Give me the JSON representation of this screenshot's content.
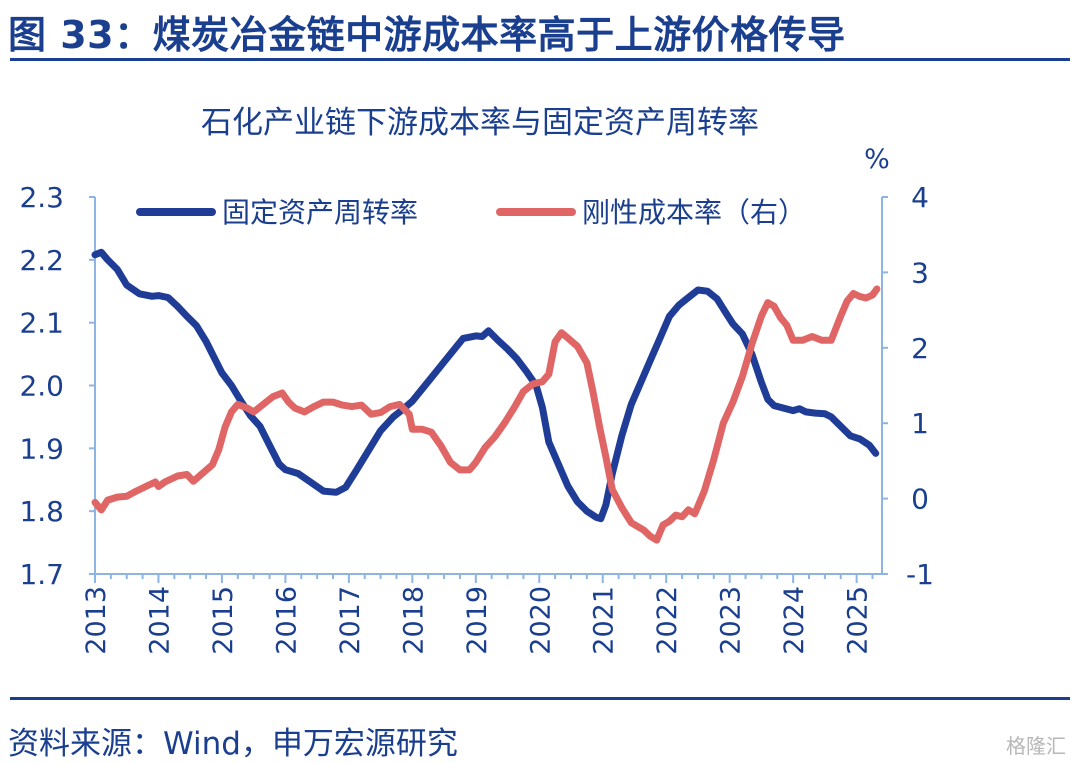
{
  "header": {
    "figure_title": "图 33：煤炭冶金链中游成本率高于上游价格传导"
  },
  "footer": {
    "source": "资料来源：Wind，申万宏源研究",
    "watermark": "格隆汇"
  },
  "colors": {
    "brand": "#1b3f8f",
    "series_left": "#1f3d96",
    "series_right": "#e06666",
    "axis": "#8eb4e3",
    "tick_text": "#1b3f8f"
  },
  "chart_data": {
    "type": "line",
    "title": "石化产业链下游成本率与固定资产周转率",
    "right_unit": "%",
    "legend_placement": "top",
    "grid": false,
    "x_range": [
      2013,
      2025.4
    ],
    "x_ticks": [
      "2013",
      "2014",
      "2015",
      "2016",
      "2017",
      "2018",
      "2019",
      "2020",
      "2021",
      "2022",
      "2023",
      "2024",
      "2025"
    ],
    "y_left": {
      "range": [
        1.7,
        2.3
      ],
      "ticks": [
        "1.7",
        "1.8",
        "1.9",
        "2.0",
        "2.1",
        "2.2",
        "2.3"
      ]
    },
    "y_right": {
      "range": [
        -1,
        4
      ],
      "ticks": [
        "-1",
        "0",
        "1",
        "2",
        "3",
        "4"
      ]
    },
    "series": [
      {
        "name": "固定资产周转率",
        "axis": "left",
        "points": [
          [
            2013.0,
            2.208
          ],
          [
            2013.1,
            2.212
          ],
          [
            2013.2,
            2.2
          ],
          [
            2013.35,
            2.185
          ],
          [
            2013.5,
            2.16
          ],
          [
            2013.7,
            2.146
          ],
          [
            2013.9,
            2.142
          ],
          [
            2014.0,
            2.143
          ],
          [
            2014.15,
            2.14
          ],
          [
            2014.3,
            2.126
          ],
          [
            2014.45,
            2.11
          ],
          [
            2014.6,
            2.095
          ],
          [
            2014.75,
            2.07
          ],
          [
            2014.9,
            2.04
          ],
          [
            2015.0,
            2.02
          ],
          [
            2015.15,
            2.0
          ],
          [
            2015.3,
            1.975
          ],
          [
            2015.45,
            1.952
          ],
          [
            2015.6,
            1.935
          ],
          [
            2015.75,
            1.905
          ],
          [
            2015.9,
            1.875
          ],
          [
            2016.0,
            1.866
          ],
          [
            2016.2,
            1.86
          ],
          [
            2016.4,
            1.846
          ],
          [
            2016.6,
            1.832
          ],
          [
            2016.8,
            1.83
          ],
          [
            2016.95,
            1.838
          ],
          [
            2017.1,
            1.862
          ],
          [
            2017.3,
            1.895
          ],
          [
            2017.5,
            1.928
          ],
          [
            2017.7,
            1.95
          ],
          [
            2017.85,
            1.962
          ],
          [
            2018.0,
            1.975
          ],
          [
            2018.2,
            2.0
          ],
          [
            2018.4,
            2.025
          ],
          [
            2018.6,
            2.05
          ],
          [
            2018.8,
            2.075
          ],
          [
            2019.0,
            2.079
          ],
          [
            2019.1,
            2.078
          ],
          [
            2019.2,
            2.087
          ],
          [
            2019.35,
            2.072
          ],
          [
            2019.5,
            2.058
          ],
          [
            2019.65,
            2.042
          ],
          [
            2019.8,
            2.022
          ],
          [
            2019.95,
            2.0
          ],
          [
            2020.05,
            1.965
          ],
          [
            2020.15,
            1.91
          ],
          [
            2020.3,
            1.875
          ],
          [
            2020.45,
            1.84
          ],
          [
            2020.6,
            1.815
          ],
          [
            2020.75,
            1.8
          ],
          [
            2020.9,
            1.79
          ],
          [
            2020.97,
            1.788
          ],
          [
            2021.05,
            1.81
          ],
          [
            2021.15,
            1.86
          ],
          [
            2021.3,
            1.92
          ],
          [
            2021.45,
            1.97
          ],
          [
            2021.6,
            2.005
          ],
          [
            2021.75,
            2.04
          ],
          [
            2021.9,
            2.075
          ],
          [
            2022.05,
            2.11
          ],
          [
            2022.2,
            2.128
          ],
          [
            2022.35,
            2.14
          ],
          [
            2022.5,
            2.152
          ],
          [
            2022.65,
            2.15
          ],
          [
            2022.8,
            2.138
          ],
          [
            2022.95,
            2.114
          ],
          [
            2023.05,
            2.098
          ],
          [
            2023.2,
            2.082
          ],
          [
            2023.35,
            2.05
          ],
          [
            2023.5,
            2.005
          ],
          [
            2023.6,
            1.978
          ],
          [
            2023.7,
            1.968
          ],
          [
            2023.85,
            1.964
          ],
          [
            2024.0,
            1.96
          ],
          [
            2024.1,
            1.963
          ],
          [
            2024.2,
            1.958
          ],
          [
            2024.35,
            1.956
          ],
          [
            2024.5,
            1.955
          ],
          [
            2024.6,
            1.95
          ],
          [
            2024.75,
            1.935
          ],
          [
            2024.9,
            1.92
          ],
          [
            2025.05,
            1.915
          ],
          [
            2025.2,
            1.905
          ],
          [
            2025.3,
            1.892
          ]
        ]
      },
      {
        "name": "刚性成本率（右）",
        "axis": "right",
        "points": [
          [
            2013.0,
            -0.05
          ],
          [
            2013.1,
            -0.15
          ],
          [
            2013.2,
            -0.02
          ],
          [
            2013.35,
            0.02
          ],
          [
            2013.5,
            0.03
          ],
          [
            2013.65,
            0.1
          ],
          [
            2013.8,
            0.16
          ],
          [
            2013.95,
            0.22
          ],
          [
            2014.0,
            0.16
          ],
          [
            2014.1,
            0.22
          ],
          [
            2014.3,
            0.3
          ],
          [
            2014.45,
            0.32
          ],
          [
            2014.55,
            0.23
          ],
          [
            2014.7,
            0.34
          ],
          [
            2014.85,
            0.45
          ],
          [
            2014.95,
            0.65
          ],
          [
            2015.05,
            0.95
          ],
          [
            2015.15,
            1.15
          ],
          [
            2015.25,
            1.25
          ],
          [
            2015.4,
            1.2
          ],
          [
            2015.5,
            1.15
          ],
          [
            2015.65,
            1.25
          ],
          [
            2015.8,
            1.35
          ],
          [
            2015.95,
            1.4
          ],
          [
            2016.05,
            1.28
          ],
          [
            2016.15,
            1.2
          ],
          [
            2016.3,
            1.15
          ],
          [
            2016.45,
            1.22
          ],
          [
            2016.6,
            1.28
          ],
          [
            2016.75,
            1.28
          ],
          [
            2016.9,
            1.24
          ],
          [
            2017.05,
            1.22
          ],
          [
            2017.2,
            1.24
          ],
          [
            2017.35,
            1.12
          ],
          [
            2017.5,
            1.14
          ],
          [
            2017.65,
            1.22
          ],
          [
            2017.8,
            1.25
          ],
          [
            2017.95,
            1.12
          ],
          [
            2018.0,
            0.92
          ],
          [
            2018.15,
            0.92
          ],
          [
            2018.3,
            0.88
          ],
          [
            2018.45,
            0.7
          ],
          [
            2018.6,
            0.48
          ],
          [
            2018.75,
            0.38
          ],
          [
            2018.9,
            0.38
          ],
          [
            2019.0,
            0.48
          ],
          [
            2019.15,
            0.68
          ],
          [
            2019.3,
            0.82
          ],
          [
            2019.45,
            1.0
          ],
          [
            2019.6,
            1.2
          ],
          [
            2019.75,
            1.42
          ],
          [
            2019.9,
            1.52
          ],
          [
            2020.05,
            1.55
          ],
          [
            2020.15,
            1.65
          ],
          [
            2020.25,
            2.08
          ],
          [
            2020.35,
            2.2
          ],
          [
            2020.45,
            2.13
          ],
          [
            2020.6,
            2.02
          ],
          [
            2020.75,
            1.8
          ],
          [
            2020.85,
            1.4
          ],
          [
            2020.95,
            0.95
          ],
          [
            2021.05,
            0.55
          ],
          [
            2021.15,
            0.12
          ],
          [
            2021.3,
            -0.12
          ],
          [
            2021.45,
            -0.32
          ],
          [
            2021.55,
            -0.37
          ],
          [
            2021.65,
            -0.42
          ],
          [
            2021.75,
            -0.5
          ],
          [
            2021.85,
            -0.55
          ],
          [
            2021.95,
            -0.35
          ],
          [
            2022.05,
            -0.3
          ],
          [
            2022.15,
            -0.22
          ],
          [
            2022.25,
            -0.24
          ],
          [
            2022.35,
            -0.15
          ],
          [
            2022.45,
            -0.2
          ],
          [
            2022.6,
            0.1
          ],
          [
            2022.75,
            0.52
          ],
          [
            2022.9,
            1.0
          ],
          [
            2023.05,
            1.28
          ],
          [
            2023.2,
            1.62
          ],
          [
            2023.35,
            2.05
          ],
          [
            2023.5,
            2.42
          ],
          [
            2023.6,
            2.6
          ],
          [
            2023.7,
            2.55
          ],
          [
            2023.8,
            2.4
          ],
          [
            2023.9,
            2.3
          ],
          [
            2024.0,
            2.1
          ],
          [
            2024.15,
            2.1
          ],
          [
            2024.3,
            2.15
          ],
          [
            2024.45,
            2.1
          ],
          [
            2024.6,
            2.1
          ],
          [
            2024.75,
            2.42
          ],
          [
            2024.85,
            2.62
          ],
          [
            2024.95,
            2.72
          ],
          [
            2025.05,
            2.68
          ],
          [
            2025.15,
            2.66
          ],
          [
            2025.25,
            2.7
          ],
          [
            2025.32,
            2.78
          ]
        ]
      }
    ]
  }
}
